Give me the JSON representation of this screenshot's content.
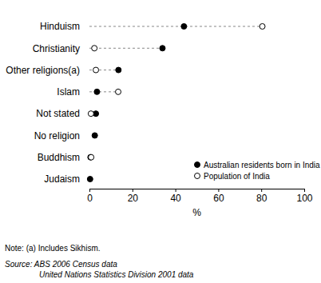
{
  "chart_data": {
    "type": "dot",
    "orientation": "horizontal",
    "line_style": "dashed",
    "categories": [
      "Hinduism",
      "Christianity",
      "Other religions(a)",
      "Islam",
      "Not stated",
      "No religion",
      "Buddhism",
      "Judaism"
    ],
    "series": [
      {
        "name": "Australian residents born in India",
        "color": "#000000",
        "marker": "filled",
        "values": [
          44,
          34,
          13.5,
          3.5,
          3,
          2.5,
          0.5,
          0.3
        ]
      },
      {
        "name": "Population of India",
        "color": "#000000",
        "marker": "open",
        "values": [
          80.5,
          2.3,
          3,
          13.4,
          0.7,
          null,
          0.8,
          null
        ]
      }
    ],
    "x_label": "%",
    "xlim": [
      0,
      100
    ],
    "xticks": [
      0,
      20,
      40,
      60,
      80,
      100
    ],
    "legend": "bottom-right",
    "annotations": [
      "Note: (a) Includes Sikhism.",
      "Source: ABS 2006 Census data",
      "United Nations Statistics Division 2001 data"
    ]
  }
}
